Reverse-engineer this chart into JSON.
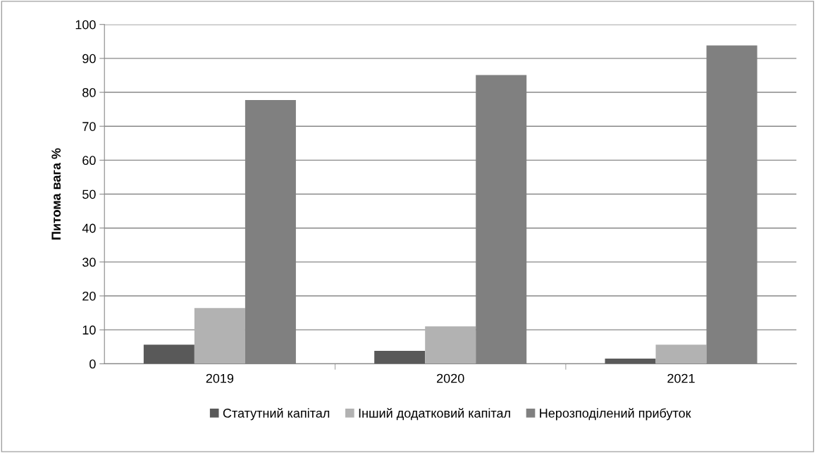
{
  "chart_data": {
    "type": "bar",
    "ylabel": "Питома вага %",
    "categories": [
      "2019",
      "2020",
      "2021"
    ],
    "series": [
      {
        "name": "Статутний капітал",
        "color": "#595959",
        "values": [
          5.6,
          3.8,
          1.5
        ]
      },
      {
        "name": "Інший додатковий капітал",
        "color": "#b2b2b2",
        "values": [
          16.4,
          11.0,
          5.6
        ]
      },
      {
        "name": "Нерозподілений прибуток",
        "color": "#808080",
        "values": [
          77.7,
          85.1,
          93.8
        ]
      }
    ],
    "ylim": [
      0,
      100
    ],
    "yticks": [
      0,
      10,
      20,
      30,
      40,
      50,
      60,
      70,
      80,
      90,
      100
    ],
    "grid": "y",
    "legend": "bottom"
  }
}
